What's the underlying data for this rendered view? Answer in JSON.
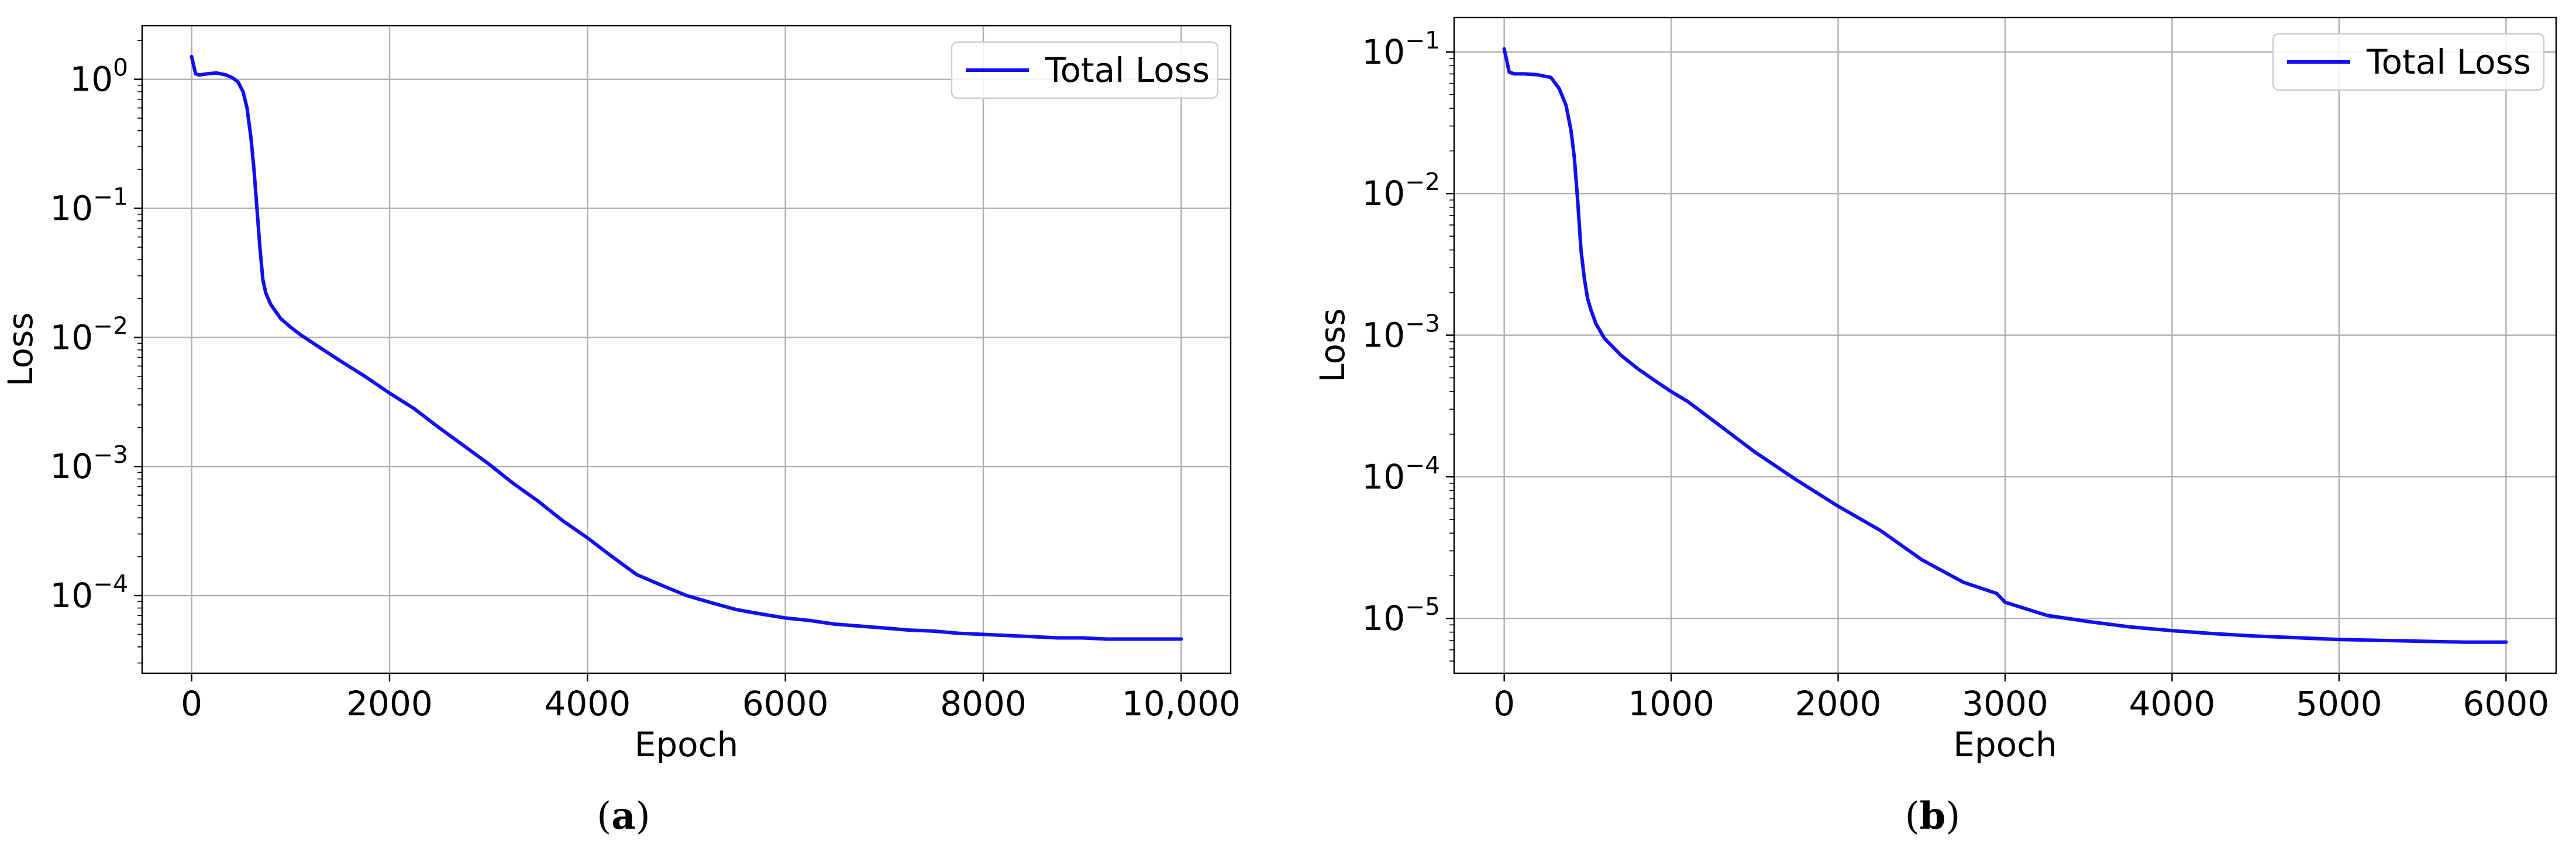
{
  "figure": {
    "panels": [
      {
        "caption_open": "(",
        "caption_letter": "a",
        "caption_close": ")"
      },
      {
        "caption_open": "(",
        "caption_letter": "b",
        "caption_close": ")"
      }
    ]
  },
  "colors": {
    "line": "#1010f0",
    "grid": "#b0b0b0",
    "axes": "#000000",
    "legend_border": "#cccccc"
  },
  "chart_data": [
    {
      "type": "line",
      "title": "",
      "xlabel": "Epoch",
      "ylabel": "Loss",
      "yscale": "log",
      "xlim": [
        -500,
        10500
      ],
      "ylim": [
        2.5e-05,
        2.6
      ],
      "xticks": [
        0,
        2000,
        4000,
        6000,
        8000,
        10000
      ],
      "xtick_labels": [
        "0",
        "2000",
        "4000",
        "6000",
        "8000",
        "10,000"
      ],
      "yticks": [
        -4,
        -3,
        -2,
        -1,
        0
      ],
      "ytick_labels": [
        {
          "base": "10",
          "exp": "−4"
        },
        {
          "base": "10",
          "exp": "−3"
        },
        {
          "base": "10",
          "exp": "−2"
        },
        {
          "base": "10",
          "exp": "−1"
        },
        {
          "base": "10",
          "exp": "0"
        }
      ],
      "grid": true,
      "legend": {
        "position": "top-right"
      },
      "series": [
        {
          "name": "Total Loss",
          "x": [
            0,
            40,
            80,
            150,
            250,
            350,
            420,
            470,
            520,
            560,
            600,
            630,
            660,
            690,
            720,
            750,
            800,
            900,
            1000,
            1100,
            1250,
            1500,
            1750,
            2000,
            2250,
            2500,
            2750,
            3000,
            3250,
            3500,
            3750,
            4000,
            4250,
            4500,
            4750,
            5000,
            5250,
            5500,
            5750,
            6000,
            6250,
            6500,
            6750,
            7000,
            7250,
            7500,
            7750,
            8000,
            8250,
            8500,
            8750,
            9000,
            9250,
            9500,
            9750,
            10000
          ],
          "y": [
            1.5,
            1.1,
            1.08,
            1.1,
            1.12,
            1.08,
            1.02,
            0.95,
            0.8,
            0.6,
            0.35,
            0.2,
            0.1,
            0.05,
            0.028,
            0.022,
            0.018,
            0.014,
            0.012,
            0.0105,
            0.0088,
            0.0066,
            0.005,
            0.0037,
            0.0028,
            0.002,
            0.00145,
            0.00105,
            0.00074,
            0.00054,
            0.00038,
            0.00028,
            0.0002,
            0.000145,
            0.00012,
            0.0001,
            8.8e-05,
            7.8e-05,
            7.2e-05,
            6.7e-05,
            6.4e-05,
            6e-05,
            5.8e-05,
            5.6e-05,
            5.4e-05,
            5.3e-05,
            5.1e-05,
            5e-05,
            4.9e-05,
            4.8e-05,
            4.7e-05,
            4.7e-05,
            4.6e-05,
            4.6e-05,
            4.6e-05,
            4.6e-05
          ]
        }
      ]
    },
    {
      "type": "line",
      "title": "",
      "xlabel": "Epoch",
      "ylabel": "Loss",
      "yscale": "log",
      "xlim": [
        -300,
        6300
      ],
      "ylim": [
        4.1e-06,
        0.175
      ],
      "xticks": [
        0,
        1000,
        2000,
        3000,
        4000,
        5000,
        6000
      ],
      "xtick_labels": [
        "0",
        "1000",
        "2000",
        "3000",
        "4000",
        "5000",
        "6000"
      ],
      "yticks": [
        -5,
        -4,
        -3,
        -2,
        -1
      ],
      "ytick_labels": [
        {
          "base": "10",
          "exp": "−5"
        },
        {
          "base": "10",
          "exp": "−4"
        },
        {
          "base": "10",
          "exp": "−3"
        },
        {
          "base": "10",
          "exp": "−2"
        },
        {
          "base": "10",
          "exp": "−1"
        }
      ],
      "grid": true,
      "legend": {
        "position": "top-right"
      },
      "series": [
        {
          "name": "Total Loss",
          "x": [
            0,
            30,
            60,
            120,
            200,
            280,
            330,
            370,
            400,
            420,
            440,
            460,
            480,
            500,
            520,
            550,
            600,
            700,
            800,
            900,
            1000,
            1100,
            1250,
            1500,
            1750,
            2000,
            2250,
            2500,
            2750,
            2950,
            3000,
            3250,
            3500,
            3750,
            4000,
            4250,
            4500,
            4750,
            5000,
            5250,
            5500,
            5750,
            6000
          ],
          "y": [
            0.105,
            0.072,
            0.07,
            0.07,
            0.069,
            0.066,
            0.055,
            0.042,
            0.028,
            0.018,
            0.009,
            0.004,
            0.0025,
            0.0018,
            0.0015,
            0.0012,
            0.00095,
            0.00072,
            0.00058,
            0.00048,
            0.0004,
            0.00034,
            0.00025,
            0.00015,
            9.5e-05,
            6.2e-05,
            4.2e-05,
            2.6e-05,
            1.8e-05,
            1.5e-05,
            1.3e-05,
            1.05e-05,
            9.5e-06,
            8.7e-06,
            8.2e-06,
            7.8e-06,
            7.5e-06,
            7.3e-06,
            7.1e-06,
            7e-06,
            6.9e-06,
            6.8e-06,
            6.8e-06
          ]
        }
      ]
    }
  ]
}
